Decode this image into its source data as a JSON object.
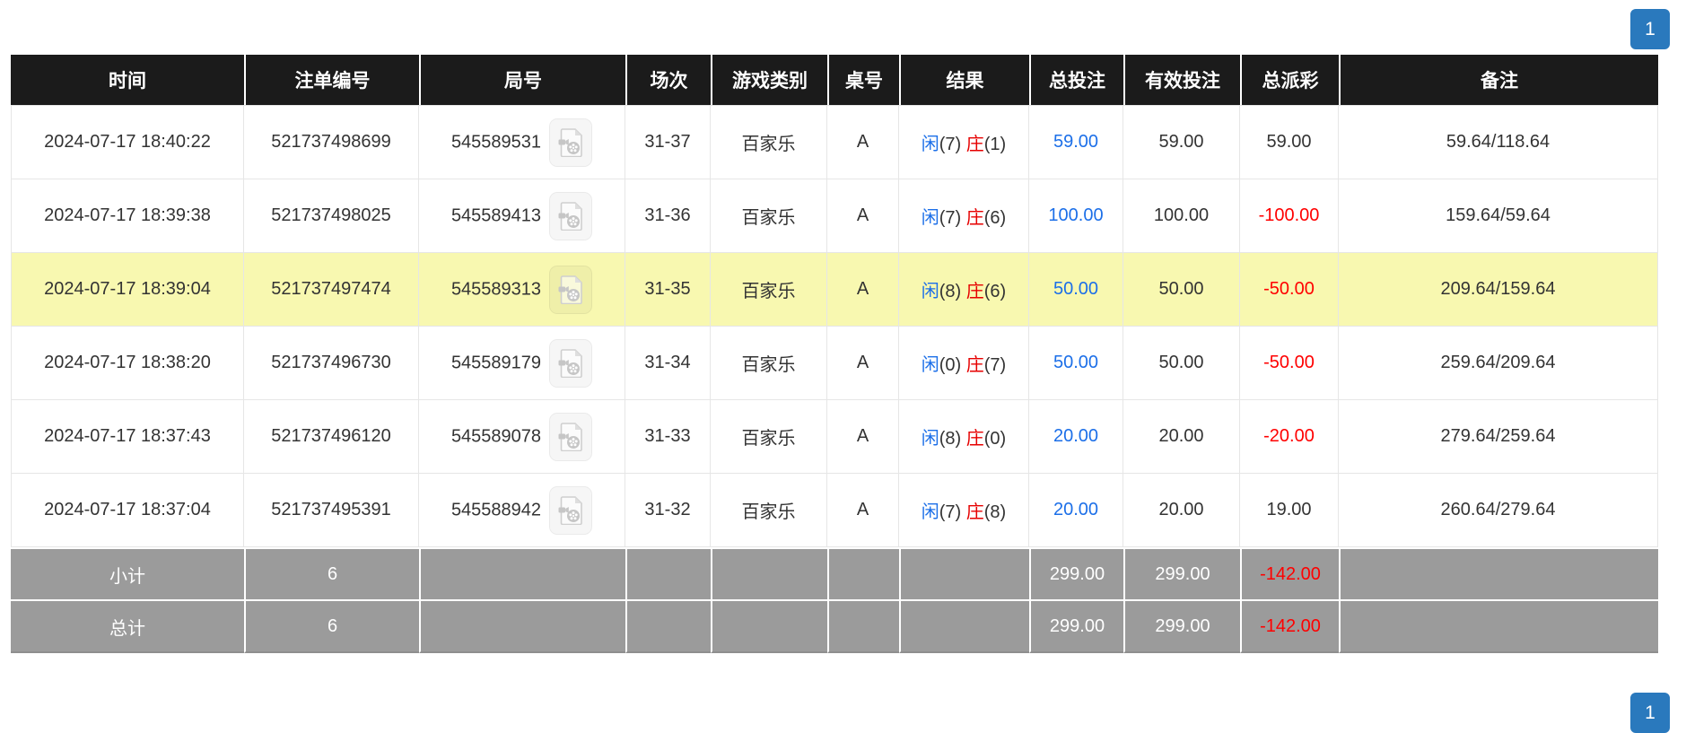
{
  "pagination": {
    "top_label": "1",
    "bottom_label": "1"
  },
  "icons": {
    "round_column_icon": "video-replay-icon"
  },
  "colors": {
    "header_black": "#1b1b1b",
    "footer_gray": "#9b9b9b",
    "highlight_yellow": "#f8f8b0",
    "player_blue": "#1c6fe8",
    "banker_red": "#e60000",
    "amount_blue": "#1c6fe8",
    "negative_red": "#ff0000",
    "pagination_blue": "#2a79bd",
    "border_light": "#e6e6e6",
    "text_dark": "#333333"
  },
  "table": {
    "headers": [
      "时间",
      "注单编号",
      "局号",
      "场次",
      "游戏类别",
      "桌号",
      "结果",
      "总投注",
      "有效投注",
      "总派彩",
      "备注"
    ],
    "rows": [
      {
        "time": "2024-07-17 18:40:22",
        "bet_id": "521737498699",
        "round_id": "545589531",
        "session": "31-37",
        "game_type": "百家乐",
        "table_no": "A",
        "result": {
          "player_label": "闲",
          "player_score": "(7)",
          "banker_label": "庄",
          "banker_score": "(1)"
        },
        "total_bet": "59.00",
        "valid_bet": "59.00",
        "payout": "59.00",
        "remark": "59.64/118.64",
        "highlighted": false
      },
      {
        "time": "2024-07-17 18:39:38",
        "bet_id": "521737498025",
        "round_id": "545589413",
        "session": "31-36",
        "game_type": "百家乐",
        "table_no": "A",
        "result": {
          "player_label": "闲",
          "player_score": "(7)",
          "banker_label": "庄",
          "banker_score": "(6)"
        },
        "total_bet": "100.00",
        "valid_bet": "100.00",
        "payout": "-100.00",
        "remark": "159.64/59.64",
        "highlighted": false
      },
      {
        "time": "2024-07-17 18:39:04",
        "bet_id": "521737497474",
        "round_id": "545589313",
        "session": "31-35",
        "game_type": "百家乐",
        "table_no": "A",
        "result": {
          "player_label": "闲",
          "player_score": "(8)",
          "banker_label": "庄",
          "banker_score": "(6)"
        },
        "total_bet": "50.00",
        "valid_bet": "50.00",
        "payout": "-50.00",
        "remark": "209.64/159.64",
        "highlighted": true
      },
      {
        "time": "2024-07-17 18:38:20",
        "bet_id": "521737496730",
        "round_id": "545589179",
        "session": "31-34",
        "game_type": "百家乐",
        "table_no": "A",
        "result": {
          "player_label": "闲",
          "player_score": "(0)",
          "banker_label": "庄",
          "banker_score": "(7)"
        },
        "total_bet": "50.00",
        "valid_bet": "50.00",
        "payout": "-50.00",
        "remark": "259.64/209.64",
        "highlighted": false
      },
      {
        "time": "2024-07-17 18:37:43",
        "bet_id": "521737496120",
        "round_id": "545589078",
        "session": "31-33",
        "game_type": "百家乐",
        "table_no": "A",
        "result": {
          "player_label": "闲",
          "player_score": "(8)",
          "banker_label": "庄",
          "banker_score": "(0)"
        },
        "total_bet": "20.00",
        "valid_bet": "20.00",
        "payout": "-20.00",
        "remark": "279.64/259.64",
        "highlighted": false
      },
      {
        "time": "2024-07-17 18:37:04",
        "bet_id": "521737495391",
        "round_id": "545588942",
        "session": "31-32",
        "game_type": "百家乐",
        "table_no": "A",
        "result": {
          "player_label": "闲",
          "player_score": "(7)",
          "banker_label": "庄",
          "banker_score": "(8)"
        },
        "total_bet": "20.00",
        "valid_bet": "20.00",
        "payout": "19.00",
        "remark": "260.64/279.64",
        "highlighted": false
      }
    ],
    "footer_rows": [
      {
        "label": "小计",
        "count": "6",
        "total_bet": "299.00",
        "valid_bet": "299.00",
        "payout": "-142.00"
      },
      {
        "label": "总计",
        "count": "6",
        "total_bet": "299.00",
        "valid_bet": "299.00",
        "payout": "-142.00"
      }
    ]
  }
}
